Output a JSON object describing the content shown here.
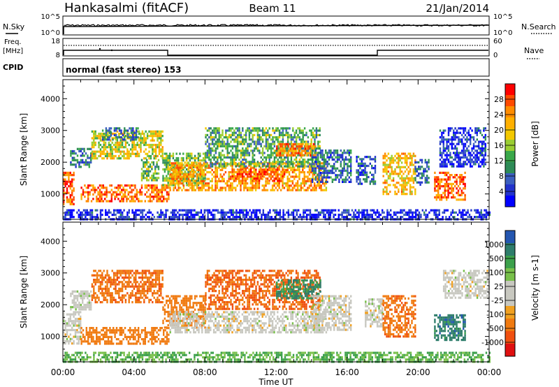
{
  "header": {
    "station": "Hankasalmi (fitACF)",
    "beam": "Beam 11",
    "date": "21/Jan/2014"
  },
  "top_panels": {
    "nsky_label": "N.Sky",
    "nsearch_label": "N.Search",
    "nsky_ticks": [
      "10^5",
      "10^0"
    ],
    "nsearch_ticks": [
      "10^5",
      "10^0"
    ],
    "freq_label_1": "Freq.",
    "freq_label_2": "[MHz]",
    "freq_ticks": [
      "18",
      "8"
    ],
    "nave_label": "Nave",
    "nave_ticks": [
      "60",
      "0"
    ],
    "cpid_label": "CPID",
    "cpid_text": "normal (fast stereo) 153"
  },
  "colorbars": {
    "power": {
      "label": "Power [dB]",
      "ticks": [
        "28",
        "24",
        "20",
        "16",
        "12",
        "8",
        "4"
      ],
      "colors": [
        "#ff0000",
        "#ff4a00",
        "#ff8c00",
        "#ffb000",
        "#f3c800",
        "#9acd32",
        "#3aa84a",
        "#2e8b57",
        "#3b5fbf",
        "#2233cc",
        "#0000ff"
      ]
    },
    "velocity": {
      "label": "Velocity [m s-1]",
      "ticks": [
        "1000",
        "500",
        "100",
        "25",
        "-25",
        "-100",
        "-500",
        "-1000"
      ],
      "colors": [
        "#2456b0",
        "#2e7d6b",
        "#3ca04b",
        "#78c04a",
        "#c8c8c0",
        "#c8c8c0",
        "#f0a020",
        "#f07a10",
        "#f05010",
        "#e01010"
      ]
    }
  },
  "chart_data": [
    {
      "type": "heatmap",
      "panel": "power",
      "ylabel": "Slant Range [km]",
      "ylim": [
        200,
        4600
      ],
      "y_ticks": [
        1000,
        2000,
        3000,
        4000
      ],
      "xlim": [
        0,
        24
      ],
      "regions": [
        {
          "t0": 0.0,
          "t1": 0.6,
          "r0": 700,
          "r1": 1700,
          "v": 26
        },
        {
          "t0": 0.4,
          "t1": 1.6,
          "r0": 1850,
          "r1": 2450,
          "v": 10
        },
        {
          "t0": 1.0,
          "t1": 6.0,
          "r0": 750,
          "r1": 1300,
          "v": 25
        },
        {
          "t0": 1.6,
          "t1": 5.6,
          "r0": 2100,
          "r1": 3000,
          "v": 18
        },
        {
          "t0": 2.2,
          "t1": 4.2,
          "r0": 2700,
          "r1": 3100,
          "v": 10
        },
        {
          "t0": 4.4,
          "t1": 5.4,
          "r0": 1450,
          "r1": 2100,
          "v": 14
        },
        {
          "t0": 5.6,
          "t1": 8.0,
          "r0": 1300,
          "r1": 2300,
          "v": 15
        },
        {
          "t0": 6.0,
          "t1": 14.8,
          "r0": 1100,
          "r1": 2000,
          "v": 22
        },
        {
          "t0": 8.0,
          "t1": 14.5,
          "r0": 1900,
          "r1": 3100,
          "v": 13
        },
        {
          "t0": 12.0,
          "t1": 14.2,
          "r0": 2200,
          "r1": 2600,
          "v": 24
        },
        {
          "t0": 9.5,
          "t1": 12.5,
          "r0": 1400,
          "r1": 1800,
          "v": 26
        },
        {
          "t0": 14.0,
          "t1": 16.2,
          "r0": 1400,
          "r1": 2400,
          "v": 9
        },
        {
          "t0": 16.5,
          "t1": 17.6,
          "r0": 1300,
          "r1": 2200,
          "v": 8
        },
        {
          "t0": 18.0,
          "t1": 19.8,
          "r0": 1000,
          "r1": 2300,
          "v": 20
        },
        {
          "t0": 19.8,
          "t1": 20.6,
          "r0": 1300,
          "r1": 2100,
          "v": 8
        },
        {
          "t0": 20.9,
          "t1": 22.6,
          "r0": 800,
          "r1": 1700,
          "v": 25
        },
        {
          "t0": 21.2,
          "t1": 23.8,
          "r0": 1900,
          "r1": 3100,
          "v": 6
        },
        {
          "t0": 0.0,
          "t1": 24.0,
          "r0": 220,
          "r1": 520,
          "v": 5
        }
      ]
    },
    {
      "type": "heatmap",
      "panel": "velocity",
      "ylabel": "Slant Range [km]",
      "ylim": [
        200,
        4600
      ],
      "y_ticks": [
        1000,
        2000,
        3000,
        4000
      ],
      "xlim": [
        0,
        24
      ],
      "xlabel": "Time UT",
      "x_ticks": [
        "00:00",
        "04:00",
        "08:00",
        "12:00",
        "16:00",
        "20:00",
        "00:00"
      ],
      "regions": [
        {
          "t0": 0.0,
          "t1": 1.0,
          "r0": 800,
          "r1": 1800,
          "v": 0
        },
        {
          "t0": 0.4,
          "t1": 1.6,
          "r0": 1850,
          "r1": 2450,
          "v": 0
        },
        {
          "t0": 1.0,
          "t1": 6.0,
          "r0": 750,
          "r1": 1300,
          "v": -300
        },
        {
          "t0": 1.6,
          "t1": 5.6,
          "r0": 2100,
          "r1": 3100,
          "v": -400
        },
        {
          "t0": 5.6,
          "t1": 8.0,
          "r0": 1300,
          "r1": 2300,
          "v": -300
        },
        {
          "t0": 6.0,
          "t1": 14.8,
          "r0": 1100,
          "r1": 1800,
          "v": 0
        },
        {
          "t0": 8.0,
          "t1": 14.5,
          "r0": 1900,
          "r1": 3100,
          "v": -500
        },
        {
          "t0": 12.0,
          "t1": 14.5,
          "r0": 2200,
          "r1": 2800,
          "v": 300
        },
        {
          "t0": 14.0,
          "t1": 16.2,
          "r0": 1200,
          "r1": 2300,
          "v": 0
        },
        {
          "t0": 17.0,
          "t1": 18.0,
          "r0": 1300,
          "r1": 2200,
          "v": 0
        },
        {
          "t0": 18.0,
          "t1": 19.8,
          "r0": 1000,
          "r1": 2300,
          "v": -400
        },
        {
          "t0": 20.9,
          "t1": 22.6,
          "r0": 900,
          "r1": 1700,
          "v": 500
        },
        {
          "t0": 21.4,
          "t1": 24.0,
          "r0": 2200,
          "r1": 3100,
          "v": 0
        },
        {
          "t0": 0.0,
          "t1": 24.0,
          "r0": 220,
          "r1": 520,
          "v": 60
        }
      ]
    }
  ]
}
